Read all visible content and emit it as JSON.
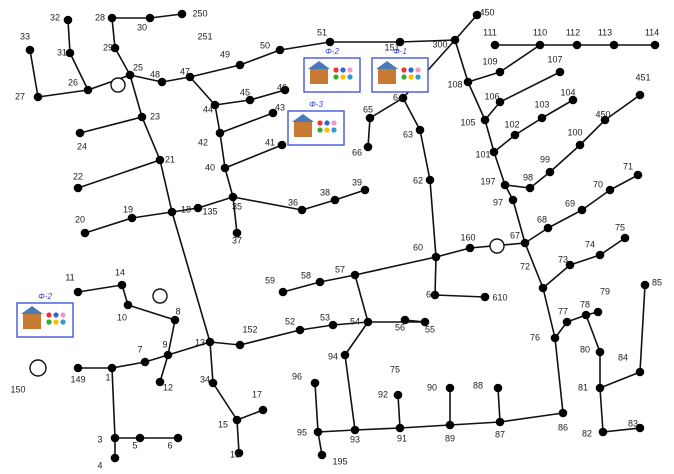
{
  "title_nodes": [
    "33",
    "32",
    "31",
    "27",
    "26",
    "28",
    "29",
    "30",
    "250",
    "251",
    "25",
    "48",
    "47",
    "49",
    "50",
    "51",
    "151",
    "300",
    "450",
    "111",
    "110",
    "112",
    "113",
    "114",
    "23",
    "24",
    "22",
    "21",
    "20",
    "19",
    "18",
    "135",
    "44",
    "45",
    "46",
    "43",
    "42",
    "41",
    "40",
    "35",
    "36",
    "37",
    "38",
    "39",
    "65",
    "64",
    "66",
    "63",
    "62",
    "60",
    "160",
    "67",
    "61",
    "610",
    "59",
    "58",
    "57",
    "56",
    "55",
    "54",
    "53",
    "52",
    "152",
    "13",
    "9",
    "8",
    "14",
    "11",
    "10",
    "12",
    "7",
    "1",
    "149",
    "150",
    "34",
    "15",
    "16",
    "17",
    "3",
    "5",
    "6",
    "4",
    "94",
    "75",
    "96",
    "95",
    "195",
    "93",
    "92",
    "91",
    "90",
    "89",
    "88",
    "87",
    "86",
    "76",
    "77",
    "78",
    "79",
    "80",
    "81",
    "82",
    "83",
    "84",
    "85",
    "72",
    "73",
    "74",
    "75",
    "68",
    "69",
    "70",
    "71",
    "97",
    "197",
    "98",
    "99",
    "100",
    "450",
    "451",
    "101",
    "102",
    "103",
    "104",
    "105",
    "106",
    "107",
    "108",
    "109"
  ],
  "pv_units": [
    {
      "phase": "Φ-2"
    },
    {
      "phase": "Φ-1"
    },
    {
      "phase": "Φ-3"
    },
    {
      "phase": "Φ-2"
    }
  ]
}
